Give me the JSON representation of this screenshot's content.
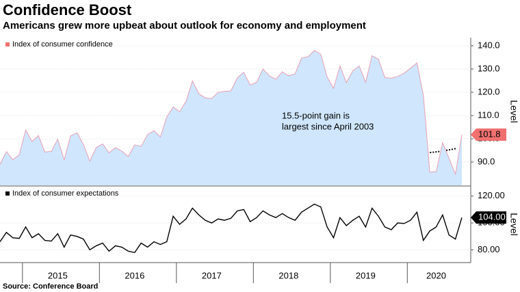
{
  "title": "Confidence Boost",
  "subtitle": "Americans grew more upbeat about outlook for economy and employment",
  "source": "Source: Conference Board",
  "chart_data": [
    {
      "type": "area",
      "categories": [
        null,
        null,
        null,
        null,
        null,
        null,
        null,
        null,
        null,
        "2015",
        null,
        null,
        null,
        null,
        null,
        null,
        null,
        null,
        null,
        null,
        null,
        "2016",
        null,
        null,
        null,
        null,
        null,
        null,
        null,
        null,
        null,
        null,
        null,
        "2017",
        null,
        null,
        null,
        null,
        null,
        null,
        null,
        null,
        null,
        null,
        null,
        "2018",
        null,
        null,
        null,
        null,
        null,
        null,
        null,
        null,
        null,
        null,
        null,
        "2019",
        null,
        null,
        null,
        null,
        null,
        null,
        null,
        null,
        null,
        null,
        "2020",
        null,
        null,
        null,
        null
      ],
      "series": [
        {
          "name": "Index of consumer confidence",
          "color": "#e8a0b4",
          "fill": "#cfe6fd",
          "marker_color": "#f07070",
          "values": [
            89.0,
            94.5,
            91.0,
            93.1,
            103.8,
            98.8,
            101.4,
            94.3,
            94.6,
            99.8,
            91.0,
            101.3,
            102.6,
            97.6,
            90.4,
            96.3,
            97.8,
            94.0,
            96.2,
            94.7,
            92.4,
            97.4,
            96.7,
            101.8,
            103.5,
            100.8,
            109.4,
            113.7,
            111.6,
            116.1,
            124.9,
            119.4,
            117.6,
            117.3,
            120.0,
            120.4,
            120.6,
            126.2,
            128.6,
            123.1,
            124.3,
            130.0,
            127.0,
            125.6,
            128.8,
            127.1,
            127.9,
            134.7,
            135.3,
            137.9,
            136.4,
            126.6,
            121.7,
            131.4,
            124.2,
            129.2,
            131.3,
            124.3,
            135.7,
            134.2,
            126.3,
            126.1,
            126.8,
            128.2,
            130.4,
            132.6,
            118.8,
            85.7,
            85.9,
            98.3,
            91.7,
            84.8,
            101.8
          ]
        }
      ],
      "ylim": [
        80,
        143.5
      ],
      "yticks": [
        {
          "value": 90,
          "label": "90.0"
        },
        {
          "value": 100,
          "label": "100.0"
        },
        {
          "value": 110,
          "label": "110.0"
        },
        {
          "value": 120,
          "label": "120.0"
        },
        {
          "value": 130,
          "label": "130.0"
        },
        {
          "value": 140,
          "label": "140.0"
        }
      ],
      "ylabel": "Level",
      "annotation": [
        "15.5-point gain is",
        "largest since April 2003"
      ],
      "grid": true
    },
    {
      "type": "line",
      "categories": [
        null,
        null,
        null,
        null,
        null,
        null,
        null,
        null,
        null,
        "2015",
        null,
        null,
        null,
        null,
        null,
        null,
        null,
        null,
        null,
        null,
        null,
        "2016",
        null,
        null,
        null,
        null,
        null,
        null,
        null,
        null,
        null,
        null,
        null,
        "2017",
        null,
        null,
        null,
        null,
        null,
        null,
        null,
        null,
        null,
        null,
        null,
        "2018",
        null,
        null,
        null,
        null,
        null,
        null,
        null,
        null,
        null,
        null,
        null,
        "2019",
        null,
        null,
        null,
        null,
        null,
        null,
        null,
        null,
        null,
        null,
        "2020",
        null,
        null,
        null,
        null
      ],
      "series": [
        {
          "name": "Index of consumer expectations",
          "color": "#000000",
          "marker_color": "#000000",
          "values": [
            86,
            93,
            89,
            88.5,
            97,
            89,
            92,
            87,
            86.5,
            92,
            82,
            91,
            90,
            88,
            80,
            83,
            85,
            79,
            83,
            82,
            79,
            78,
            85,
            82,
            86,
            84,
            86,
            105,
            99,
            103,
            111,
            106,
            102,
            100,
            103,
            102,
            103.5,
            109,
            110,
            101,
            104,
            109,
            106,
            104,
            107,
            104,
            102,
            108,
            111,
            114,
            112,
            97,
            89,
            104,
            98,
            102,
            105,
            97,
            111,
            105,
            97,
            95,
            100,
            99.6,
            102,
            108,
            87,
            94,
            97,
            106,
            91,
            88,
            104
          ],
          "value_labels": [
            null,
            null,
            null,
            null,
            null,
            null,
            null,
            null,
            null,
            null,
            null,
            null,
            null,
            null,
            null,
            null,
            null,
            null,
            null,
            null,
            null,
            null,
            null,
            null,
            null,
            null,
            null,
            null,
            null,
            null,
            null,
            null,
            null,
            null,
            null,
            null,
            null,
            null,
            null,
            null,
            null,
            null,
            null,
            null,
            null,
            null,
            null,
            null,
            null,
            null,
            null,
            null,
            null,
            null,
            null,
            null,
            null,
            null,
            null,
            null,
            null,
            null,
            null,
            null,
            null,
            null,
            null,
            null,
            null,
            null,
            null,
            null,
            "104.00"
          ]
        }
      ],
      "ylim": [
        71,
        127
      ],
      "yticks": [
        {
          "value": 80,
          "label": "80.00"
        },
        {
          "value": 100,
          "label": "100.00"
        },
        {
          "value": 120,
          "label": "120.00"
        }
      ],
      "ylabel": "Level",
      "grid": true
    }
  ]
}
